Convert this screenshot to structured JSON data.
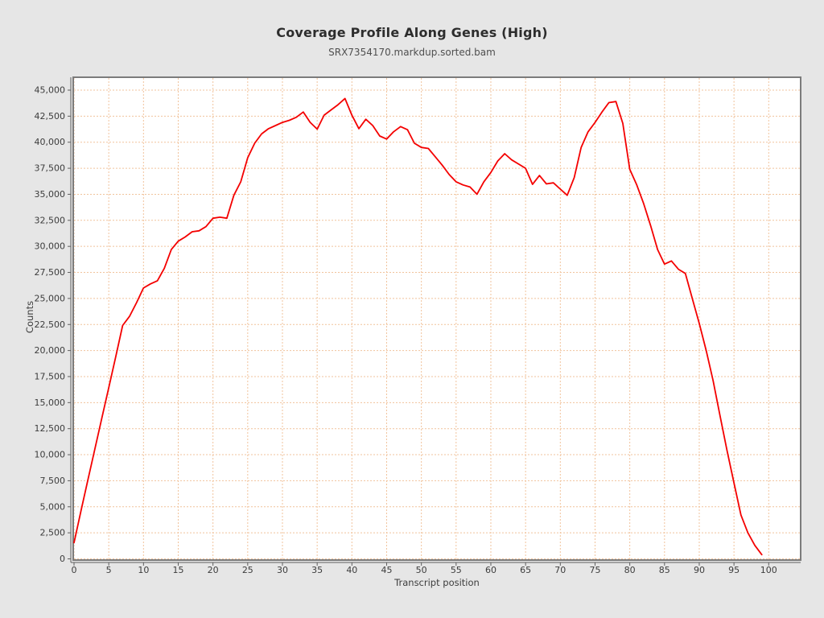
{
  "page": {
    "background": "#e6e6e6"
  },
  "chart": {
    "title": "Coverage Profile Along Genes (High)",
    "subtitle": "SRX7354170.markdup.sorted.bam",
    "xlabel": "Transcript position",
    "ylabel": "Counts",
    "colors": {
      "line": "#f40000",
      "grid": "#f1c39c",
      "plot_background": "#ffffff",
      "page_background": "#e6e6e6",
      "plot_border": "#7b7b7b",
      "axis": "#5f5f5f",
      "text": "#3c3c3c"
    }
  },
  "chart_data": {
    "type": "line",
    "title": "Coverage Profile Along Genes (High)",
    "subtitle": "SRX7354170.markdup.sorted.bam",
    "xlabel": "Transcript position",
    "ylabel": "Counts",
    "xlim": [
      0,
      104.5
    ],
    "ylim": [
      0,
      45000
    ],
    "grid": "dashed",
    "legend": "none",
    "xticks": [
      0,
      5,
      10,
      15,
      20,
      25,
      30,
      35,
      40,
      45,
      50,
      55,
      60,
      65,
      70,
      75,
      80,
      85,
      90,
      95,
      100
    ],
    "yticks": [
      0,
      2500,
      5000,
      7500,
      10000,
      12500,
      15000,
      17500,
      20000,
      22500,
      25000,
      27500,
      30000,
      32500,
      35000,
      37500,
      40000,
      42500,
      45000
    ],
    "series": [
      {
        "name": "coverage",
        "color": "#f40000",
        "x": [
          0,
          1,
          2,
          3,
          4,
          5,
          6,
          7,
          8,
          9,
          10,
          11,
          12,
          13,
          14,
          15,
          16,
          17,
          18,
          19,
          20,
          21,
          22,
          23,
          24,
          25,
          26,
          27,
          28,
          29,
          30,
          31,
          32,
          33,
          34,
          35,
          36,
          37,
          38,
          39,
          40,
          41,
          42,
          43,
          44,
          45,
          46,
          47,
          48,
          49,
          50,
          51,
          52,
          53,
          54,
          55,
          56,
          57,
          58,
          59,
          60,
          61,
          62,
          63,
          64,
          65,
          66,
          67,
          68,
          69,
          70,
          71,
          72,
          73,
          74,
          75,
          76,
          77,
          78,
          79,
          80,
          81,
          82,
          83,
          84,
          85,
          86,
          87,
          88,
          89,
          90,
          91,
          92,
          93,
          94,
          95,
          96,
          97,
          98,
          99
        ],
        "y": [
          1550,
          4600,
          7600,
          10550,
          13500,
          16450,
          19400,
          22400,
          23300,
          24600,
          26000,
          26400,
          26700,
          27900,
          29700,
          30500,
          30900,
          31400,
          31500,
          31900,
          32700,
          32800,
          32700,
          34900,
          36200,
          38500,
          39900,
          40800,
          41300,
          41600,
          41900,
          42100,
          42400,
          42900,
          41900,
          41250,
          42600,
          43100,
          43600,
          44200,
          42600,
          41300,
          42200,
          41600,
          40600,
          40300,
          41000,
          41500,
          41200,
          39900,
          39500,
          39400,
          38600,
          37800,
          36900,
          36200,
          35900,
          35700,
          35000,
          36200,
          37100,
          38200,
          38900,
          38300,
          37900,
          37500,
          35950,
          36800,
          36000,
          36100,
          35500,
          34900,
          36600,
          39500,
          41000,
          41900,
          42900,
          43800,
          43900,
          41800,
          37400,
          35900,
          34100,
          32000,
          29700,
          28300,
          28600,
          27800,
          27400,
          25000,
          22600,
          20000,
          17100,
          13700,
          10400,
          7300,
          4200,
          2500,
          1300,
          400
        ]
      }
    ]
  }
}
